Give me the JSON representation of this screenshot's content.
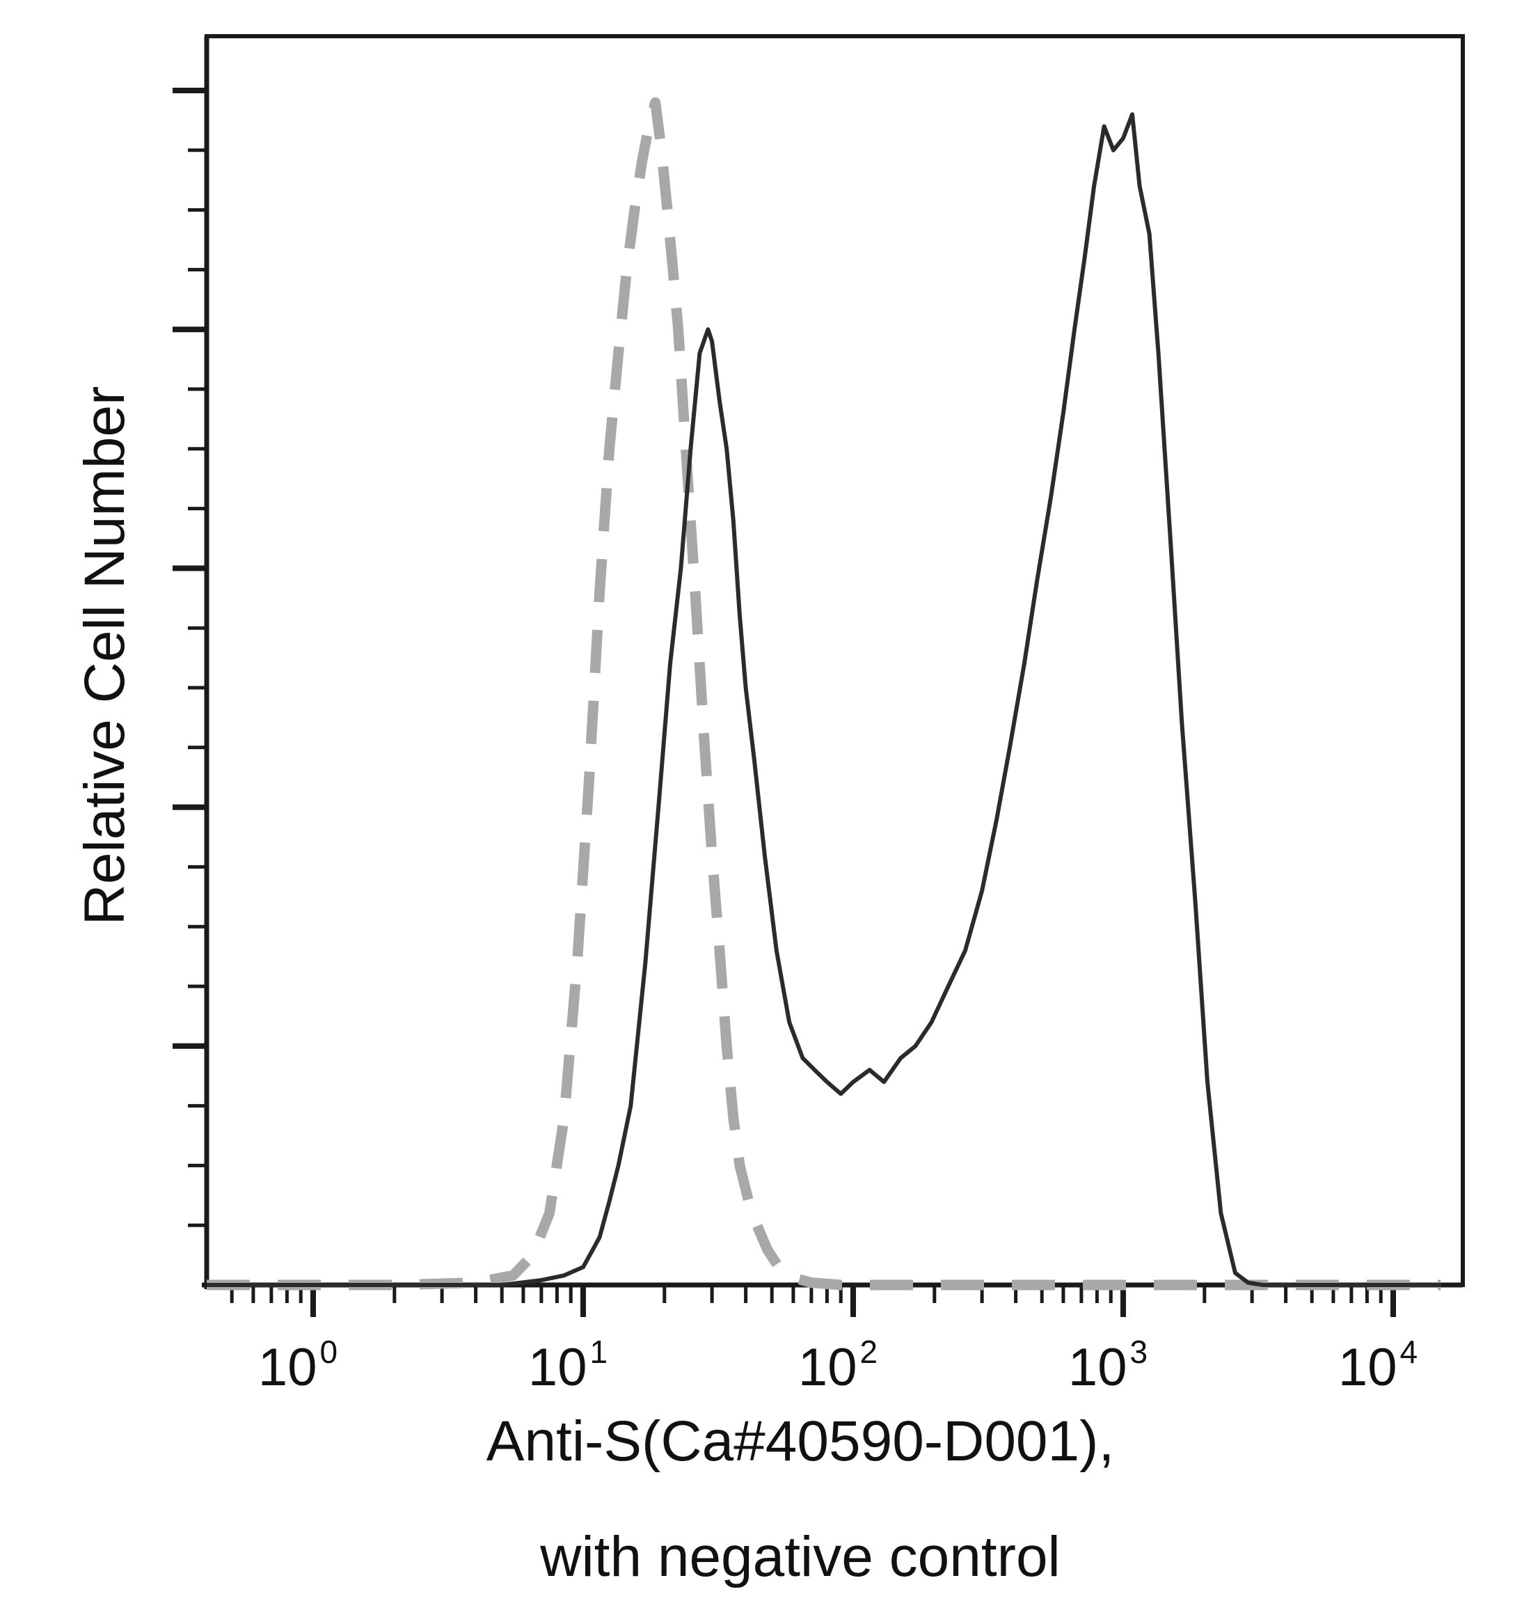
{
  "chart_data": {
    "type": "line",
    "title": "",
    "xlabel": "Anti-S(Ca#40590-D001),",
    "xlabel_line2": "with negative control",
    "ylabel": "Relative Cell Number",
    "x_scale": "log",
    "xlim": [
      0.4,
      15000
    ],
    "ylim": [
      0,
      1.0
    ],
    "grid": false,
    "legend": "none",
    "x_ticks": [
      {
        "base": "10",
        "exp": "0",
        "value": 1
      },
      {
        "base": "10",
        "exp": "1",
        "value": 10
      },
      {
        "base": "10",
        "exp": "2",
        "value": 100
      },
      {
        "base": "10",
        "exp": "3",
        "value": 1000
      },
      {
        "base": "10",
        "exp": "4",
        "value": 10000
      }
    ],
    "series": [
      {
        "style": "solid",
        "color": "#2b2b2b",
        "x": [
          0.4,
          2,
          5,
          7,
          8.5,
          10,
          11.5,
          12.5,
          13.5,
          15,
          17,
          19,
          21,
          23,
          25,
          27,
          29,
          30,
          32,
          34,
          36,
          38,
          40,
          43,
          47,
          52,
          58,
          65,
          72,
          80,
          90,
          100,
          115,
          130,
          150,
          170,
          195,
          225,
          260,
          300,
          340,
          380,
          430,
          480,
          540,
          600,
          660,
          720,
          780,
          850,
          920,
          1000,
          1080,
          1150,
          1250,
          1350,
          1500,
          1650,
          1850,
          2050,
          2300,
          2600,
          2900,
          3300,
          5000,
          15000
        ],
        "y": [
          0.0,
          0.0,
          0.0,
          0.004,
          0.008,
          0.015,
          0.04,
          0.07,
          0.1,
          0.15,
          0.27,
          0.4,
          0.52,
          0.6,
          0.7,
          0.78,
          0.8,
          0.79,
          0.74,
          0.7,
          0.64,
          0.56,
          0.5,
          0.44,
          0.36,
          0.28,
          0.22,
          0.19,
          0.18,
          0.17,
          0.16,
          0.17,
          0.18,
          0.17,
          0.19,
          0.2,
          0.22,
          0.25,
          0.28,
          0.33,
          0.39,
          0.45,
          0.52,
          0.59,
          0.66,
          0.73,
          0.8,
          0.86,
          0.92,
          0.97,
          0.95,
          0.96,
          0.98,
          0.92,
          0.88,
          0.78,
          0.62,
          0.47,
          0.32,
          0.17,
          0.06,
          0.01,
          0.002,
          0.0,
          0.0,
          0.0
        ]
      },
      {
        "style": "dashed",
        "color": "#a8a8a8",
        "x": [
          0.4,
          2,
          4,
          5.5,
          6.5,
          7.5,
          8.5,
          9.5,
          10.5,
          11.5,
          12.5,
          13.5,
          14.5,
          15.5,
          16.5,
          17.5,
          18.5,
          19.5,
          20.5,
          21.5,
          22.5,
          24,
          26,
          28,
          30,
          32,
          34,
          36,
          38,
          41,
          44,
          48,
          53,
          60,
          70,
          90,
          200,
          1000,
          15000
        ],
        "y": [
          0.0,
          0.0,
          0.002,
          0.008,
          0.025,
          0.06,
          0.14,
          0.27,
          0.42,
          0.58,
          0.7,
          0.78,
          0.85,
          0.9,
          0.94,
          0.97,
          0.99,
          0.95,
          0.9,
          0.85,
          0.8,
          0.7,
          0.58,
          0.46,
          0.36,
          0.28,
          0.2,
          0.14,
          0.1,
          0.07,
          0.05,
          0.03,
          0.015,
          0.006,
          0.002,
          0.0,
          0.0,
          0.0,
          0.0
        ]
      }
    ]
  }
}
